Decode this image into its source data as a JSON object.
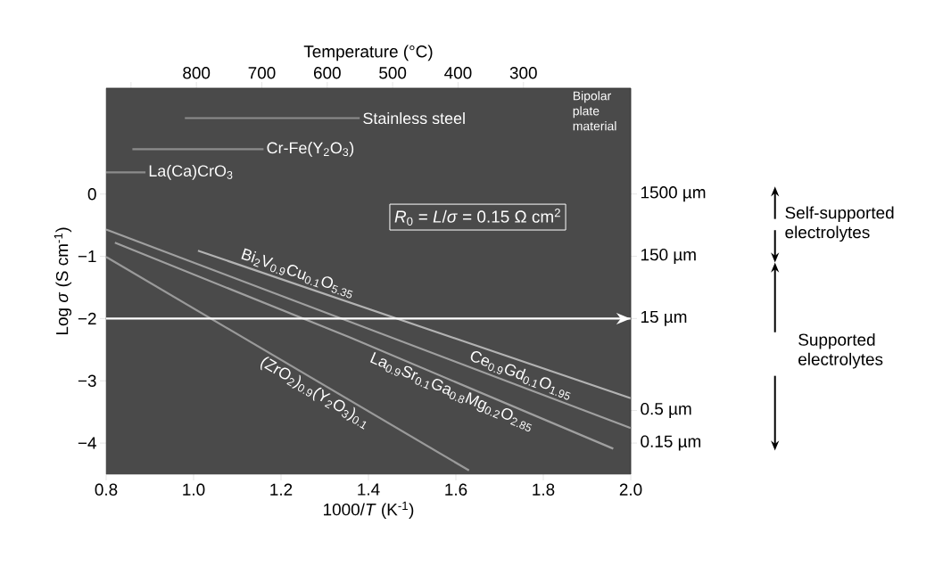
{
  "chart_data": {
    "type": "line",
    "xlabel": "1000/*T* (K$^{-1}$)",
    "ylabel": "Log *σ* (S cm$^{-1}$)",
    "x2label": "Temperature (°C)",
    "xlim": [
      0.8,
      2.0
    ],
    "xticks": [
      0.8,
      {
        "value": 1,
        "label": "1.0"
      },
      1.2,
      1.4,
      1.6,
      1.8,
      {
        "value": 2,
        "label": "2.0"
      }
    ],
    "x2lim": [
      938,
      136
    ],
    "x2ticks": [
      {
        "value": 900,
        "label": null
      },
      800,
      700,
      600,
      500,
      400,
      300
    ],
    "log": "y2",
    "ylim": [
      -4.5,
      1.7
    ],
    "yticks": [
      0,
      {
        "value": -1,
        "label": "−1"
      },
      {
        "value": -2,
        "label": "−2"
      },
      {
        "value": -3,
        "label": "−3"
      },
      {
        "value": -4,
        "label": "−4"
      }
    ],
    "y2lim": [
      0.0474,
      75000
    ],
    "y2ticks": [
      {
        "value": 1500,
        "label": "1500 µm"
      },
      {
        "value": 150,
        "label": "150 µm"
      },
      {
        "value": 15,
        "label": "15 µm"
      },
      {
        "value": 0.5,
        "label": "0.5 µm"
      },
      {
        "value": 0.15,
        "label": "0.15 µm"
      }
    ],
    "series": [
      {
        "name": "Bi$_{2}$V$_{0.9}$Cu$_{0.1}$O$_{5.35}$",
        "color": "#b3b3b3",
        "x": [
          1.01,
          2.0
        ],
        "values": [
          -0.91,
          -3.28
        ]
      },
      {
        "name": "Ce$_{0.9}$Gd$_{0.1}$O$_{1.95}$",
        "color": "#a0a0a0",
        "x": [
          0.8,
          2.0
        ],
        "values": [
          -0.57,
          -3.76
        ]
      },
      {
        "name": "La$_{0.9}$Sr$_{0.1}$Ga$_{0.8}$Mg$_{0.2}$O$_{2.85}$",
        "color": "#a0a0a0",
        "x": [
          0.82,
          1.36,
          1.96
        ],
        "values": [
          -0.78,
          -2.31,
          -4.09
        ]
      },
      {
        "name": "(ZrO$_{2}$)$_{0.9}$(Y$_{2}$O$_{3}$)$_{0.1}$",
        "color": "#9a9a9a",
        "x": [
          0.8,
          1.63
        ],
        "values": [
          -1.01,
          -4.44
        ]
      },
      {
        "name": "Stainless steel",
        "color": "#8c8c8c",
        "x": [
          0.98,
          1.38
        ],
        "values": [
          1.22,
          1.22
        ]
      },
      {
        "name": "Cr-Fe(Y$_{2}$O$_{3}$)",
        "color": "#8c8c8c",
        "x": [
          0.86,
          1.16
        ],
        "values": [
          0.72,
          0.72
        ]
      },
      {
        "name": "La(Ca)CrO$_{3}$",
        "color": "#8c8c8c",
        "x": [
          0.8,
          0.89
        ],
        "values": [
          0.35,
          0.35
        ]
      }
    ],
    "ref_lines": [
      {
        "axis": "y",
        "value": -2,
        "color": "#ffffff"
      }
    ],
    "annotations": [
      "*R*$_{0}$ = *L*/*σ* = 0.15 Ω cm$^{2}$",
      "Bipolar plate material",
      "Self-supported electrolytes",
      "Supported electrolytes"
    ]
  }
}
